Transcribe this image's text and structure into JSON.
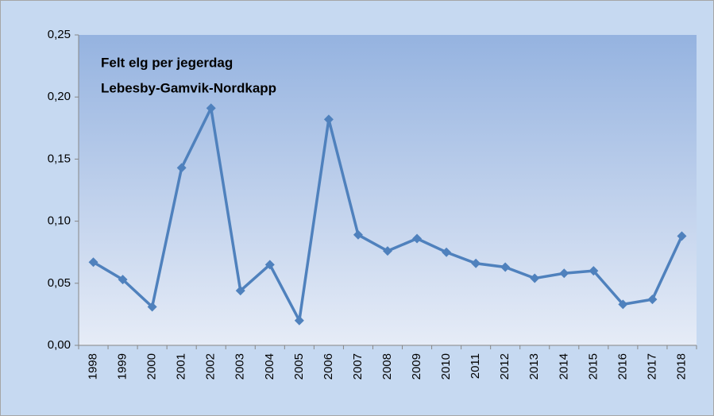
{
  "chart_data": {
    "type": "line",
    "title": "Felt elg per jegerdag",
    "subtitle": "Lebesby-Gamvik-Nordkapp",
    "categories": [
      "1998",
      "1999",
      "2000",
      "2001",
      "2002",
      "2003",
      "2004",
      "2005",
      "2006",
      "2007",
      "2008",
      "2009",
      "2010",
      "2011",
      "2012",
      "2013",
      "2014",
      "2015",
      "2016",
      "2017",
      "2018"
    ],
    "values": [
      0.067,
      0.053,
      0.031,
      0.143,
      0.191,
      0.044,
      0.065,
      0.02,
      0.182,
      0.089,
      0.076,
      0.086,
      0.075,
      0.066,
      0.063,
      0.054,
      0.058,
      0.06,
      0.033,
      0.037,
      0.088
    ],
    "color": "#4f81bd",
    "ylim": [
      0,
      0.25
    ],
    "yticks": [
      {
        "value": 0,
        "label": "0,00"
      },
      {
        "value": 0.05,
        "label": "0,05"
      },
      {
        "value": 0.1,
        "label": "0,10"
      },
      {
        "value": 0.15,
        "label": "0,15"
      },
      {
        "value": 0.2,
        "label": "0,20"
      },
      {
        "value": 0.25,
        "label": "0,25"
      }
    ],
    "grid": false
  }
}
